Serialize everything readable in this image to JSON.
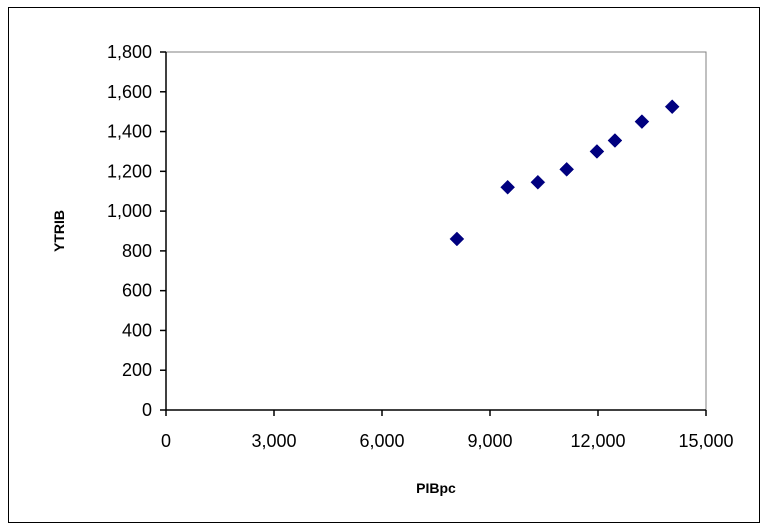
{
  "chart_data": {
    "type": "scatter",
    "title": "",
    "xlabel": "PIBpc",
    "ylabel": "YTRIB",
    "xlim": [
      0,
      15000
    ],
    "ylim": [
      0,
      1800
    ],
    "x_ticks": [
      0,
      3000,
      6000,
      9000,
      12000,
      15000
    ],
    "x_tick_labels": [
      "0",
      "3,000",
      "6,000",
      "9,000",
      "12,000",
      "15,000"
    ],
    "y_ticks": [
      0,
      200,
      400,
      600,
      800,
      1000,
      1200,
      1400,
      1600,
      1800
    ],
    "y_tick_labels": [
      "0",
      "200",
      "400",
      "600",
      "800",
      "1,000",
      "1,200",
      "1,400",
      "1,600",
      "1,800"
    ],
    "grid": false,
    "marker": "diamond",
    "marker_color": "#00007f",
    "series": [
      {
        "x": [
          8080,
          9490,
          10330,
          11130,
          11970,
          12470,
          13220,
          14060
        ],
        "y": [
          860,
          1120,
          1145,
          1210,
          1300,
          1355,
          1450,
          1525
        ]
      }
    ]
  }
}
